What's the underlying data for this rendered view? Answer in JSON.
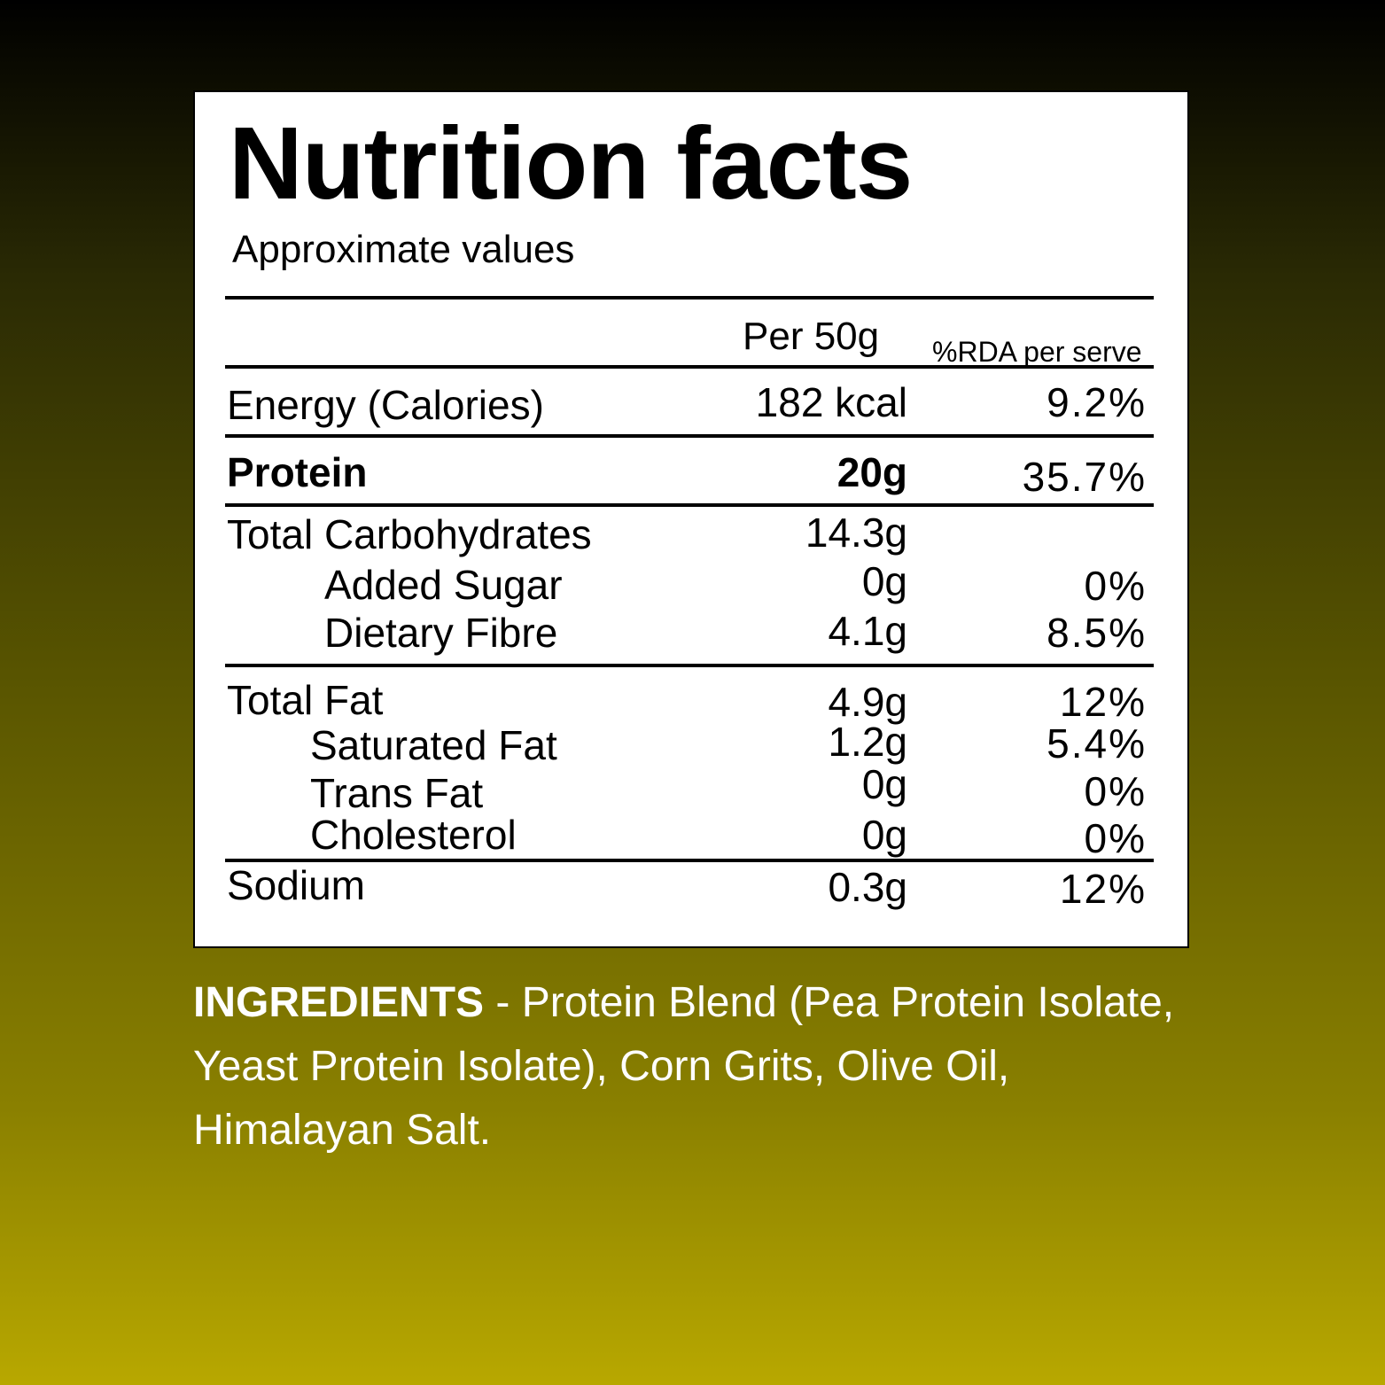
{
  "panel": {
    "title": "Nutrition facts",
    "subtitle": "Approximate values",
    "col_amount": "Per 50g",
    "col_rda": "%RDA per serve"
  },
  "rows": [
    {
      "label": "Energy (Calories)",
      "amount": "182 kcal",
      "rda": "9.2%"
    },
    {
      "label": "Protein",
      "amount": "20g",
      "rda": "35.7%"
    },
    {
      "label": "Total Carbohydrates",
      "amount": "14.3g",
      "rda": ""
    },
    {
      "label": "Added Sugar",
      "amount": "0g",
      "rda": "0%"
    },
    {
      "label": "Dietary Fibre",
      "amount": "4.1g",
      "rda": "8.5%"
    },
    {
      "label": "Total Fat",
      "amount": "4.9g",
      "rda": "12%"
    },
    {
      "label": "Saturated Fat",
      "amount": "1.2g",
      "rda": "5.4%"
    },
    {
      "label": "Trans Fat",
      "amount": "0g",
      "rda": "0%"
    },
    {
      "label": "Cholesterol",
      "amount": "0g",
      "rda": "0%"
    },
    {
      "label": "Sodium",
      "amount": "0.3g",
      "rda": "12%"
    }
  ],
  "ingredients": {
    "heading": "INGREDIENTS",
    "text": " - Protein Blend (Pea Protein Isolate, Yeast Protein Isolate), Corn Grits, Olive Oil, Himalayan Salt."
  },
  "colors": {
    "background_top": "#000000",
    "background_bottom": "#b8a800",
    "panel": "#ffffff",
    "ingredients_text": "#ffffff"
  }
}
